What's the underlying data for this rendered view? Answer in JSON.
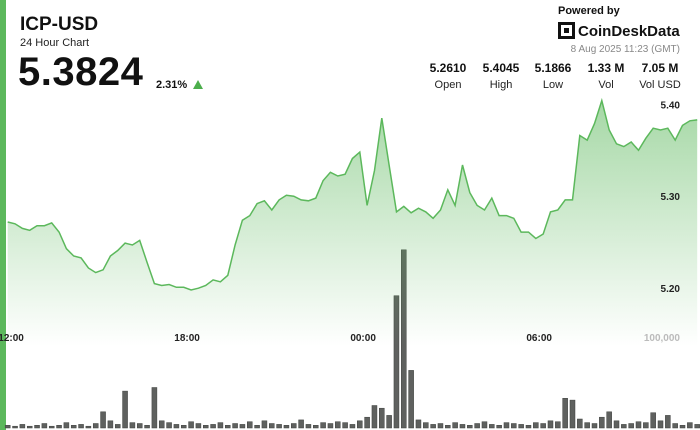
{
  "header": {
    "title": "ICP-USD",
    "subtitle": "24 Hour Chart",
    "price": "5.3824",
    "change": "2.31%",
    "powered_by": "Powered by",
    "brand": "CoinDeskData",
    "timestamp": "8 Aug 2025 11:23 (GMT)"
  },
  "stats": [
    {
      "value": "5.2610",
      "label": "Open"
    },
    {
      "value": "5.4045",
      "label": "High"
    },
    {
      "value": "5.1866",
      "label": "Low"
    },
    {
      "value": "1.33 M",
      "label": "Vol"
    },
    {
      "value": "7.05 M",
      "label": "Vol USD"
    }
  ],
  "chart_data": [
    {
      "type": "area",
      "color": "#5cb85c",
      "x": [
        11.75,
        12,
        12.25,
        12.5,
        12.75,
        13,
        13.25,
        13.5,
        13.75,
        14,
        14.25,
        14.5,
        14.75,
        15,
        15.25,
        15.5,
        15.75,
        16,
        16.25,
        16.5,
        16.75,
        17,
        17.25,
        17.5,
        17.75,
        18,
        18.25,
        18.5,
        18.75,
        19,
        19.25,
        19.5,
        19.75,
        20,
        20.25,
        20.5,
        20.75,
        21,
        21.25,
        21.5,
        21.75,
        22,
        22.25,
        22.5,
        22.75,
        23,
        23.25,
        23.5,
        23.75,
        24,
        24.25,
        24.5,
        24.75,
        25,
        25.25,
        25.5,
        25.75,
        26,
        26.25,
        26.5,
        26.75,
        27,
        27.25,
        27.5,
        27.75,
        28,
        28.25,
        28.5,
        28.75,
        29,
        29.25,
        29.5,
        29.75,
        30,
        30.25,
        30.5,
        30.75,
        31,
        31.25,
        31.5,
        31.75,
        32,
        32.25,
        32.5,
        32.75,
        33,
        33.25,
        33.5,
        33.75,
        34,
        34.25,
        34.5,
        34.75,
        35,
        35.25
      ],
      "values": [
        5.272,
        5.27,
        5.265,
        5.263,
        5.268,
        5.268,
        5.271,
        5.261,
        5.243,
        5.235,
        5.233,
        5.222,
        5.217,
        5.22,
        5.235,
        5.241,
        5.249,
        5.247,
        5.252,
        5.228,
        5.205,
        5.203,
        5.204,
        5.201,
        5.201,
        5.198,
        5.2,
        5.203,
        5.209,
        5.207,
        5.214,
        5.247,
        5.274,
        5.279,
        5.292,
        5.295,
        5.285,
        5.296,
        5.301,
        5.3,
        5.296,
        5.295,
        5.298,
        5.317,
        5.326,
        5.322,
        5.324,
        5.341,
        5.348,
        5.29,
        5.328,
        5.385,
        5.334,
        5.283,
        5.289,
        5.282,
        5.287,
        5.283,
        5.276,
        5.285,
        5.307,
        5.29,
        5.334,
        5.304,
        5.29,
        5.285,
        5.298,
        5.279,
        5.279,
        5.276,
        5.261,
        5.261,
        5.254,
        5.259,
        5.283,
        5.285,
        5.296,
        5.296,
        5.366,
        5.361,
        5.379,
        5.404,
        5.372,
        5.357,
        5.354,
        5.359,
        5.35,
        5.363,
        5.374,
        5.372,
        5.374,
        5.361,
        5.377,
        5.382,
        5.383
      ],
      "xlim": [
        11.76,
        35.38
      ],
      "ylim": [
        5.048,
        5.409
      ],
      "xticks": [
        {
          "value": 12,
          "label": "12:00"
        },
        {
          "value": 18,
          "label": "18:00"
        },
        {
          "value": 24,
          "label": "00:00"
        },
        {
          "value": 30,
          "label": "06:00"
        }
      ],
      "yticks": [
        {
          "value": 5.2,
          "label": "5.20"
        },
        {
          "value": 5.3,
          "label": "5.30"
        },
        {
          "value": 5.4,
          "label": "5.40"
        }
      ]
    },
    {
      "type": "bar",
      "color": "#5f615f",
      "x": [
        11.75,
        12,
        12.25,
        12.5,
        12.75,
        13,
        13.25,
        13.5,
        13.75,
        14,
        14.25,
        14.5,
        14.75,
        15,
        15.25,
        15.5,
        15.75,
        16,
        16.25,
        16.5,
        16.75,
        17,
        17.25,
        17.5,
        17.75,
        18,
        18.25,
        18.5,
        18.75,
        19,
        19.25,
        19.5,
        19.75,
        20,
        20.25,
        20.5,
        20.75,
        21,
        21.25,
        21.5,
        21.75,
        22,
        22.25,
        22.5,
        22.75,
        23,
        23.25,
        23.5,
        23.75,
        24,
        24.25,
        24.5,
        24.75,
        25,
        25.25,
        25.5,
        25.75,
        26,
        26.25,
        26.5,
        26.75,
        27,
        27.25,
        27.5,
        27.75,
        28,
        28.25,
        28.5,
        28.75,
        29,
        29.25,
        29.5,
        29.75,
        30,
        30.25,
        30.5,
        30.75,
        31,
        31.25,
        31.5,
        31.75,
        32,
        32.25,
        32.5,
        32.75,
        33,
        33.25,
        33.5,
        33.75,
        34,
        34.25,
        34.5,
        34.75,
        35,
        35.25
      ],
      "values": [
        3000,
        2000,
        4000,
        2000,
        3000,
        5000,
        2000,
        3000,
        6000,
        3000,
        4000,
        2000,
        5000,
        18000,
        8000,
        4000,
        41000,
        6000,
        5000,
        3000,
        45000,
        8000,
        6000,
        4000,
        3000,
        7000,
        5000,
        3000,
        4000,
        6000,
        3000,
        5000,
        4000,
        7000,
        3000,
        8000,
        5000,
        4000,
        3000,
        5000,
        9000,
        4000,
        3000,
        6000,
        5000,
        7000,
        6000,
        4000,
        8000,
        12000,
        25000,
        22000,
        14000,
        147000,
        198000,
        64000,
        9000,
        6000,
        4000,
        5000,
        3000,
        6000,
        4000,
        3000,
        5000,
        7000,
        4000,
        3000,
        6000,
        5000,
        4000,
        3000,
        6000,
        5000,
        8000,
        7000,
        33000,
        31000,
        10000,
        6000,
        5000,
        12000,
        18000,
        8000,
        4000,
        5000,
        7000,
        6000,
        17000,
        8000,
        14000,
        5000,
        3000,
        6000,
        4000
      ],
      "xlim": [
        11.76,
        35.38
      ],
      "ylim": [
        0,
        200000
      ],
      "yticks": [
        {
          "value": 100000,
          "label": "100,000"
        }
      ]
    }
  ]
}
